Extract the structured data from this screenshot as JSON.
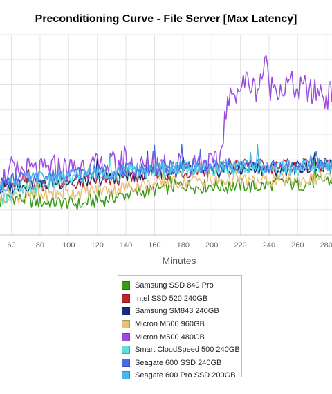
{
  "chart_data": {
    "type": "line",
    "title": "Preconditioning Curve - File Server [Max Latency]",
    "xlabel": "Minutes",
    "ylabel": "",
    "xlim": [
      52,
      284
    ],
    "ylim": [
      0,
      8
    ],
    "x_ticks": [
      60,
      80,
      100,
      120,
      140,
      160,
      180,
      200,
      220,
      240,
      260,
      280
    ],
    "grid": true,
    "legend_position": "bottom",
    "series": [
      {
        "name": "Samsung SSD 840 Pro",
        "color": "#3a9a16",
        "x": [
          52,
          60,
          70,
          80,
          90,
          100,
          110,
          115,
          120,
          130,
          140,
          150,
          160,
          170,
          180,
          190,
          200,
          210,
          220,
          230,
          240,
          250,
          260,
          270,
          280,
          284
        ],
        "y": [
          1.3,
          1.5,
          1.4,
          1.3,
          1.3,
          1.3,
          1.2,
          1.4,
          1.3,
          1.5,
          1.6,
          1.7,
          1.8,
          1.9,
          2.0,
          1.9,
          2.0,
          1.9,
          2.0,
          1.9,
          2.0,
          2.1,
          2.0,
          2.1,
          2.2,
          2.1
        ]
      },
      {
        "name": "Intel SSD 520 240GB",
        "color": "#c0222a",
        "x": [
          52,
          60,
          70,
          80,
          90,
          100,
          110,
          120,
          130,
          140,
          150,
          160,
          170,
          180,
          190,
          200,
          210,
          220,
          230,
          240,
          250,
          260,
          270,
          280,
          284
        ],
        "y": [
          2.0,
          2.0,
          2.1,
          2.0,
          2.1,
          2.0,
          2.1,
          2.2,
          2.2,
          2.3,
          2.4,
          2.5,
          2.4,
          2.5,
          2.6,
          2.6,
          2.7,
          2.8,
          2.8,
          2.7,
          2.8,
          2.7,
          2.8,
          2.7,
          2.8
        ]
      },
      {
        "name": "Samsung SM843 240GB",
        "color": "#1a2b78",
        "x": [
          52,
          60,
          70,
          80,
          90,
          100,
          110,
          120,
          130,
          140,
          150,
          160,
          170,
          180,
          190,
          200,
          210,
          220,
          230,
          240,
          250,
          260,
          270,
          280,
          284
        ],
        "y": [
          1.8,
          1.9,
          2.0,
          2.0,
          2.1,
          2.1,
          2.2,
          2.2,
          2.3,
          2.4,
          2.4,
          2.5,
          2.5,
          2.6,
          2.6,
          2.5,
          2.6,
          2.6,
          2.7,
          2.6,
          2.6,
          2.7,
          2.7,
          2.8,
          2.7
        ]
      },
      {
        "name": "Micron M500 960GB",
        "color": "#e8c07a",
        "x": [
          52,
          60,
          70,
          80,
          90,
          100,
          110,
          120,
          130,
          140,
          150,
          160,
          170,
          180,
          190,
          200,
          210,
          220,
          230,
          240,
          250,
          260,
          270,
          280,
          284
        ],
        "y": [
          1.5,
          1.6,
          1.5,
          1.6,
          1.6,
          1.7,
          1.7,
          1.8,
          1.8,
          1.9,
          2.0,
          2.0,
          2.1,
          2.1,
          2.2,
          2.1,
          2.2,
          2.2,
          2.1,
          2.2,
          2.2,
          2.2,
          2.2,
          2.3,
          2.2
        ]
      },
      {
        "name": "Micron M500 480GB",
        "color": "#9b4be0",
        "x": [
          52,
          60,
          70,
          80,
          90,
          100,
          110,
          120,
          130,
          140,
          150,
          160,
          170,
          180,
          190,
          200,
          205,
          210,
          215,
          220,
          225,
          230,
          235,
          237,
          240,
          245,
          250,
          255,
          260,
          265,
          270,
          275,
          280,
          284
        ],
        "y": [
          2.2,
          2.4,
          2.6,
          2.5,
          2.7,
          2.6,
          2.8,
          2.7,
          2.8,
          2.9,
          2.7,
          2.8,
          2.9,
          2.8,
          2.9,
          2.8,
          2.8,
          5.0,
          5.6,
          5.9,
          6.2,
          5.8,
          6.1,
          7.2,
          5.9,
          6.0,
          5.8,
          6.1,
          5.7,
          5.9,
          5.6,
          5.8,
          5.5,
          5.7
        ]
      },
      {
        "name": "Smart CloudSpeed 500 240GB",
        "color": "#5ae0d8",
        "x": [
          52,
          60,
          70,
          80,
          90,
          100,
          110,
          120,
          130,
          140,
          150,
          160,
          170,
          180,
          190,
          200,
          210,
          220,
          230,
          240,
          250,
          260,
          270,
          280,
          284
        ],
        "y": [
          1.4,
          1.6,
          1.8,
          1.9,
          2.1,
          2.2,
          2.3,
          2.4,
          2.4,
          2.5,
          2.5,
          2.6,
          2.6,
          2.6,
          2.7,
          2.6,
          2.7,
          2.6,
          2.7,
          2.6,
          2.7,
          2.6,
          2.8,
          2.7,
          2.7
        ]
      },
      {
        "name": "Seagate 600 SSD 240GB",
        "color": "#4a6be8",
        "x": [
          52,
          60,
          70,
          80,
          90,
          100,
          110,
          120,
          130,
          140,
          150,
          160,
          170,
          180,
          190,
          200,
          210,
          220,
          230,
          240,
          250,
          260,
          270,
          280,
          284
        ],
        "y": [
          2.0,
          2.2,
          2.3,
          2.3,
          2.4,
          2.4,
          2.5,
          2.5,
          2.5,
          2.6,
          2.6,
          2.7,
          2.7,
          2.7,
          2.8,
          2.7,
          2.8,
          2.7,
          2.8,
          2.7,
          2.8,
          2.7,
          2.8,
          2.8,
          2.7
        ]
      },
      {
        "name": "Seagate 600 Pro SSD 200GB",
        "color": "#4ab4ec",
        "x": [
          52,
          60,
          70,
          80,
          90,
          100,
          110,
          120,
          130,
          140,
          150,
          160,
          170,
          180,
          190,
          200,
          210,
          220,
          230,
          240,
          250,
          260,
          270,
          280,
          284
        ],
        "y": [
          1.9,
          2.1,
          2.2,
          2.3,
          2.3,
          2.4,
          2.4,
          2.5,
          2.5,
          2.6,
          2.6,
          2.6,
          2.7,
          2.7,
          2.7,
          2.7,
          2.8,
          2.7,
          2.8,
          2.7,
          2.8,
          2.7,
          2.8,
          2.8,
          2.8
        ]
      }
    ]
  }
}
